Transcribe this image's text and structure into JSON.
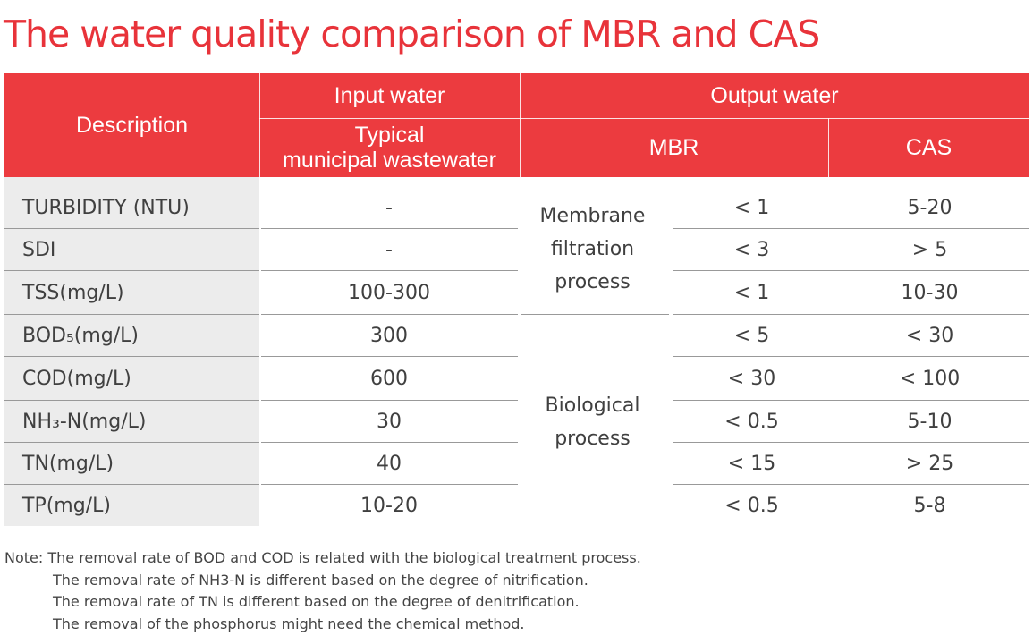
{
  "title": "The water quality comparison of MBR and CAS",
  "header": {
    "description": "Description",
    "input_water": "Input water",
    "output_water": "Output water",
    "typical_line1": "Typical",
    "typical_line2": "municipal wastewater",
    "mbr": "MBR",
    "cas": "CAS"
  },
  "groups": {
    "membrane_line1": "Membrane",
    "membrane_line2": "filtration",
    "membrane_line3": "process",
    "biological_line1": "Biological",
    "biological_line2": "process"
  },
  "rows": [
    {
      "description": "TURBIDITY (NTU)",
      "input": "-",
      "mbr": "< 1",
      "cas": "5-20"
    },
    {
      "description": "SDI",
      "input": "-",
      "mbr": "< 3",
      "cas": "> 5"
    },
    {
      "description": "TSS(mg/L)",
      "input": "100-300",
      "mbr": "< 1",
      "cas": "10-30"
    },
    {
      "description": "BOD₅(mg/L)",
      "input": "300",
      "mbr": "< 5",
      "cas": "< 30"
    },
    {
      "description": "COD(mg/L)",
      "input": "600",
      "mbr": "< 30",
      "cas": "< 100"
    },
    {
      "description": "NH₃-N(mg/L)",
      "input": "30",
      "mbr": "< 0.5",
      "cas": "5-10"
    },
    {
      "description": "TN(mg/L)",
      "input": "40",
      "mbr": "< 15",
      "cas": "> 25"
    },
    {
      "description": "TP(mg/L)",
      "input": "10-20",
      "mbr": "< 0.5",
      "cas": "5-8"
    }
  ],
  "notes": [
    "Note: The removal rate of BOD and COD is related with the biological treatment process.",
    "The removal rate of NH3-N is different based on the degree of nitrification.",
    "The removal rate of TN is different based on the degree of denitrification.",
    "The removal of the phosphorus might need the chemical method."
  ],
  "colors": {
    "header_bg": "#ec3b3f",
    "title": "#e8333a",
    "desc_bg": "#ececec"
  }
}
